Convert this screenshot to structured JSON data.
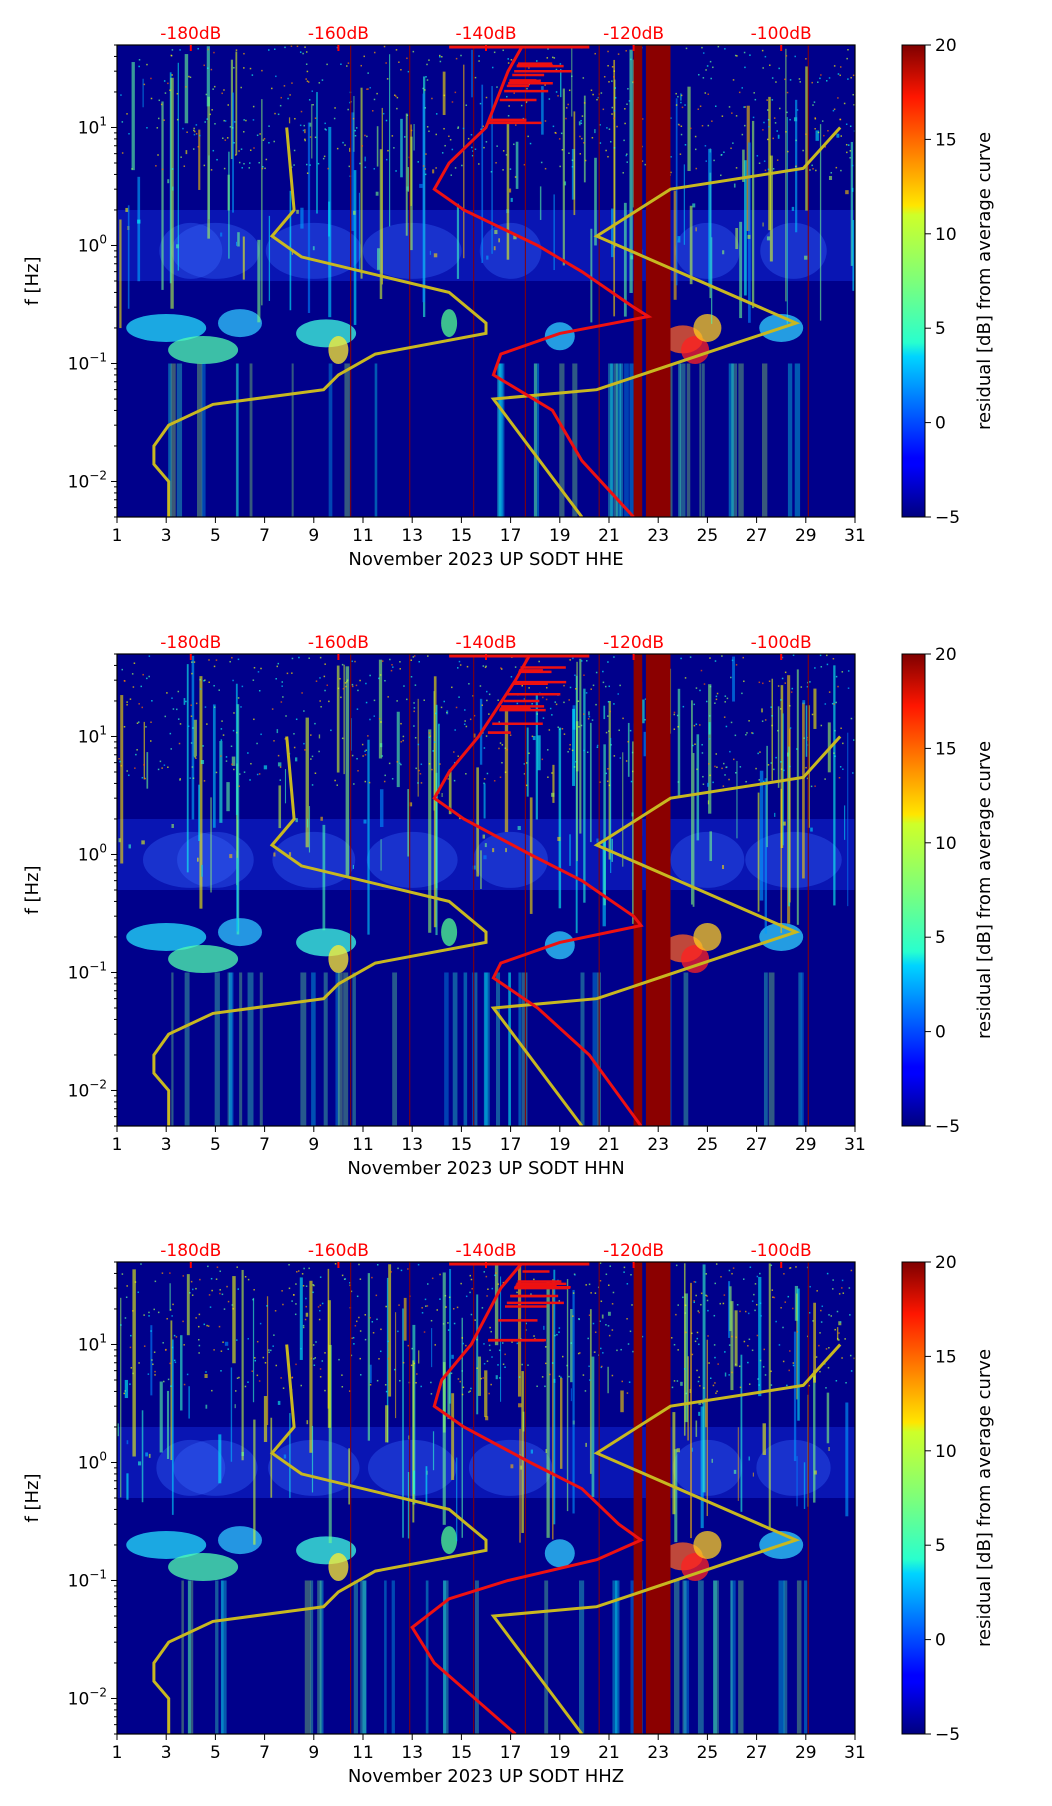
{
  "colors": {
    "average_curve": "#ee1111",
    "reference_curve": "#c8b820",
    "top_scale": "#ff0000",
    "background": "#00008b"
  },
  "chart_data": [
    {
      "type": "heatmap",
      "channel": "HHE",
      "xlabel": "November 2023 UP SODT  HHE",
      "ylabel": "f [Hz]",
      "x_ticks": [
        "1",
        "3",
        "5",
        "7",
        "9",
        "11",
        "13",
        "15",
        "17",
        "19",
        "21",
        "23",
        "25",
        "27",
        "29",
        "31"
      ],
      "xlim": [
        1,
        31
      ],
      "ylim": [
        0.005,
        50
      ],
      "y_scale": "log",
      "y_ticks": [
        {
          "base": "10",
          "exp": "−2"
        },
        {
          "base": "10",
          "exp": "−1"
        },
        {
          "base": "10",
          "exp": "0"
        },
        {
          "base": "10",
          "exp": "1"
        }
      ],
      "top_axis_labels": [
        "-180dB",
        "-160dB",
        "-140dB",
        "-120dB",
        "-100dB"
      ],
      "top_axis_values": [
        -180,
        -160,
        -140,
        -120,
        -100
      ],
      "dB_range": [
        -190,
        -90
      ],
      "colorbar_label": "residual [dB] from average curve",
      "colorbar_ticks": [
        "20",
        "15",
        "10",
        "5",
        "0",
        "−5"
      ],
      "colorbar_range": [
        -5,
        20
      ],
      "average_curve_name": "average curve",
      "average_curve_db": [
        {
          "f": 50,
          "db": -135
        },
        {
          "f": 30,
          "db": -137
        },
        {
          "f": 10,
          "db": -140
        },
        {
          "f": 5,
          "db": -145
        },
        {
          "f": 3,
          "db": -147
        },
        {
          "f": 2,
          "db": -143
        },
        {
          "f": 1,
          "db": -133
        },
        {
          "f": 0.6,
          "db": -127
        },
        {
          "f": 0.3,
          "db": -120
        },
        {
          "f": 0.25,
          "db": -118
        },
        {
          "f": 0.18,
          "db": -130
        },
        {
          "f": 0.12,
          "db": -138
        },
        {
          "f": 0.08,
          "db": -139
        },
        {
          "f": 0.04,
          "db": -131
        },
        {
          "f": 0.015,
          "db": -127
        },
        {
          "f": 0.005,
          "db": -120
        }
      ],
      "reference_curve_db": [
        {
          "f": 10,
          "db": -167
        },
        {
          "f": 2,
          "db": -166
        },
        {
          "f": 1.2,
          "db": -169
        },
        {
          "f": 0.8,
          "db": -165
        },
        {
          "f": 0.4,
          "db": -145
        },
        {
          "f": 0.22,
          "db": -140
        },
        {
          "f": 0.18,
          "db": -140
        },
        {
          "f": 0.12,
          "db": -155
        },
        {
          "f": 0.08,
          "db": -160
        },
        {
          "f": 0.06,
          "db": -162
        },
        {
          "f": 0.045,
          "db": -177
        },
        {
          "f": 0.03,
          "db": -183
        },
        {
          "f": 0.02,
          "db": -185
        },
        {
          "f": 0.014,
          "db": -185
        },
        {
          "f": 0.01,
          "db": -183
        },
        {
          "f": 0.005,
          "db": -183
        }
      ],
      "reference_curve_right_db": [
        {
          "f": 10,
          "db": -92
        },
        {
          "f": 4.5,
          "db": -97
        },
        {
          "f": 3,
          "db": -115
        },
        {
          "f": 1.2,
          "db": -125
        },
        {
          "f": 0.22,
          "db": -98
        },
        {
          "f": 0.15,
          "db": -106
        },
        {
          "f": 0.06,
          "db": -125
        },
        {
          "f": 0.05,
          "db": -139
        },
        {
          "f": 0.005,
          "db": -127
        }
      ]
    },
    {
      "type": "heatmap",
      "channel": "HHN",
      "xlabel": "November 2023 UP SODT  HHN",
      "ylabel": "f [Hz]",
      "x_ticks": [
        "1",
        "3",
        "5",
        "7",
        "9",
        "11",
        "13",
        "15",
        "17",
        "19",
        "21",
        "23",
        "25",
        "27",
        "29",
        "31"
      ],
      "xlim": [
        1,
        31
      ],
      "ylim": [
        0.005,
        50
      ],
      "y_scale": "log",
      "y_ticks": [
        {
          "base": "10",
          "exp": "−2"
        },
        {
          "base": "10",
          "exp": "−1"
        },
        {
          "base": "10",
          "exp": "0"
        },
        {
          "base": "10",
          "exp": "1"
        }
      ],
      "top_axis_labels": [
        "-180dB",
        "-160dB",
        "-140dB",
        "-120dB",
        "-100dB"
      ],
      "top_axis_values": [
        -180,
        -160,
        -140,
        -120,
        -100
      ],
      "dB_range": [
        -190,
        -90
      ],
      "colorbar_label": "residual [dB] from average curve",
      "colorbar_ticks": [
        "20",
        "15",
        "10",
        "5",
        "0",
        "−5"
      ],
      "colorbar_range": [
        -5,
        20
      ],
      "average_curve_name": "average curve",
      "average_curve_db": [
        {
          "f": 50,
          "db": -134
        },
        {
          "f": 30,
          "db": -136
        },
        {
          "f": 10,
          "db": -141
        },
        {
          "f": 5,
          "db": -145
        },
        {
          "f": 3,
          "db": -147
        },
        {
          "f": 2,
          "db": -143
        },
        {
          "f": 1,
          "db": -134
        },
        {
          "f": 0.6,
          "db": -127
        },
        {
          "f": 0.3,
          "db": -120
        },
        {
          "f": 0.25,
          "db": -119
        },
        {
          "f": 0.18,
          "db": -130
        },
        {
          "f": 0.12,
          "db": -138
        },
        {
          "f": 0.09,
          "db": -139
        },
        {
          "f": 0.05,
          "db": -133
        },
        {
          "f": 0.02,
          "db": -126
        },
        {
          "f": 0.005,
          "db": -119
        }
      ],
      "reference_curve_db": [
        {
          "f": 10,
          "db": -167
        },
        {
          "f": 2,
          "db": -166
        },
        {
          "f": 1.2,
          "db": -169
        },
        {
          "f": 0.8,
          "db": -165
        },
        {
          "f": 0.4,
          "db": -145
        },
        {
          "f": 0.22,
          "db": -140
        },
        {
          "f": 0.18,
          "db": -140
        },
        {
          "f": 0.12,
          "db": -155
        },
        {
          "f": 0.08,
          "db": -160
        },
        {
          "f": 0.06,
          "db": -162
        },
        {
          "f": 0.045,
          "db": -177
        },
        {
          "f": 0.03,
          "db": -183
        },
        {
          "f": 0.02,
          "db": -185
        },
        {
          "f": 0.014,
          "db": -185
        },
        {
          "f": 0.01,
          "db": -183
        },
        {
          "f": 0.005,
          "db": -183
        }
      ],
      "reference_curve_right_db": [
        {
          "f": 10,
          "db": -92
        },
        {
          "f": 4.5,
          "db": -97
        },
        {
          "f": 3,
          "db": -115
        },
        {
          "f": 1.2,
          "db": -125
        },
        {
          "f": 0.22,
          "db": -98
        },
        {
          "f": 0.15,
          "db": -106
        },
        {
          "f": 0.06,
          "db": -125
        },
        {
          "f": 0.05,
          "db": -139
        },
        {
          "f": 0.005,
          "db": -127
        }
      ]
    },
    {
      "type": "heatmap",
      "channel": "HHZ",
      "xlabel": "November 2023 UP SODT  HHZ",
      "ylabel": "f [Hz]",
      "x_ticks": [
        "1",
        "3",
        "5",
        "7",
        "9",
        "11",
        "13",
        "15",
        "17",
        "19",
        "21",
        "23",
        "25",
        "27",
        "29",
        "31"
      ],
      "xlim": [
        1,
        31
      ],
      "ylim": [
        0.005,
        50
      ],
      "y_scale": "log",
      "y_ticks": [
        {
          "base": "10",
          "exp": "−2"
        },
        {
          "base": "10",
          "exp": "−1"
        },
        {
          "base": "10",
          "exp": "0"
        },
        {
          "base": "10",
          "exp": "1"
        }
      ],
      "top_axis_labels": [
        "-180dB",
        "-160dB",
        "-140dB",
        "-120dB",
        "-100dB"
      ],
      "top_axis_values": [
        -180,
        -160,
        -140,
        -120,
        -100
      ],
      "dB_range": [
        -190,
        -90
      ],
      "colorbar_label": "residual [dB] from average curve",
      "colorbar_ticks": [
        "20",
        "15",
        "10",
        "5",
        "0",
        "−5"
      ],
      "colorbar_range": [
        -5,
        20
      ],
      "average_curve_name": "average curve",
      "average_curve_db": [
        {
          "f": 50,
          "db": -135
        },
        {
          "f": 30,
          "db": -138
        },
        {
          "f": 10,
          "db": -142
        },
        {
          "f": 5,
          "db": -146
        },
        {
          "f": 3,
          "db": -147
        },
        {
          "f": 2,
          "db": -143
        },
        {
          "f": 1,
          "db": -134
        },
        {
          "f": 0.6,
          "db": -127
        },
        {
          "f": 0.3,
          "db": -122
        },
        {
          "f": 0.22,
          "db": -119
        },
        {
          "f": 0.15,
          "db": -125
        },
        {
          "f": 0.1,
          "db": -137
        },
        {
          "f": 0.07,
          "db": -145
        },
        {
          "f": 0.04,
          "db": -150
        },
        {
          "f": 0.02,
          "db": -147
        },
        {
          "f": 0.005,
          "db": -136
        }
      ],
      "reference_curve_db": [
        {
          "f": 10,
          "db": -167
        },
        {
          "f": 2,
          "db": -166
        },
        {
          "f": 1.2,
          "db": -169
        },
        {
          "f": 0.8,
          "db": -165
        },
        {
          "f": 0.4,
          "db": -145
        },
        {
          "f": 0.22,
          "db": -140
        },
        {
          "f": 0.18,
          "db": -140
        },
        {
          "f": 0.12,
          "db": -155
        },
        {
          "f": 0.08,
          "db": -160
        },
        {
          "f": 0.06,
          "db": -162
        },
        {
          "f": 0.045,
          "db": -177
        },
        {
          "f": 0.03,
          "db": -183
        },
        {
          "f": 0.02,
          "db": -185
        },
        {
          "f": 0.014,
          "db": -185
        },
        {
          "f": 0.01,
          "db": -183
        },
        {
          "f": 0.005,
          "db": -183
        }
      ],
      "reference_curve_right_db": [
        {
          "f": 10,
          "db": -92
        },
        {
          "f": 4.5,
          "db": -97
        },
        {
          "f": 3,
          "db": -115
        },
        {
          "f": 1.2,
          "db": -125
        },
        {
          "f": 0.22,
          "db": -98
        },
        {
          "f": 0.15,
          "db": -106
        },
        {
          "f": 0.06,
          "db": -125
        },
        {
          "f": 0.05,
          "db": -139
        },
        {
          "f": 0.005,
          "db": -127
        }
      ]
    }
  ]
}
